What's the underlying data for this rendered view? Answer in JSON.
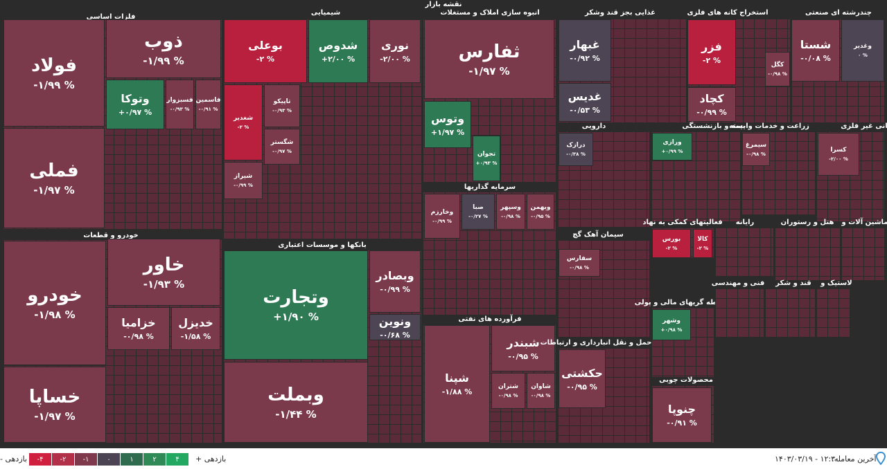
{
  "header": {
    "title": "نقشه بازار"
  },
  "sectors": [
    {
      "title": "فلزات اساسی",
      "tiles": [
        {
          "name": "فولاد",
          "change": "-۱/۹۹ %",
          "color": "#7b3a4c"
        },
        {
          "name": "فملی",
          "change": "-۱/۹۷ %",
          "color": "#7b3a4c"
        },
        {
          "name": "ذوب",
          "change": "-۱/۹۹ %",
          "color": "#7b3a4c"
        },
        {
          "name": "وتوکا",
          "change": "+۰/۹۷ %",
          "color": "#2e7a55"
        },
        {
          "name": "فسبزوار",
          "change": "-۰/۹۳ %",
          "color": "#7b3a4c"
        },
        {
          "name": "فاسمین",
          "change": "-۰/۹۱ %",
          "color": "#7b3a4c"
        }
      ]
    },
    {
      "title": "خودرو و قطعات",
      "tiles": [
        {
          "name": "خودرو",
          "change": "-۱/۹۸ %",
          "color": "#7b3a4c"
        },
        {
          "name": "خساپا",
          "change": "-۱/۹۷ %",
          "color": "#7b3a4c"
        },
        {
          "name": "خاور",
          "change": "-۱/۹۳ %",
          "color": "#7b3a4c"
        },
        {
          "name": "خزامیا",
          "change": "-۰/۹۸ %",
          "color": "#7b3a4c"
        },
        {
          "name": "خدیزل",
          "change": "-۱/۵۸ %",
          "color": "#7b3a4c"
        }
      ]
    },
    {
      "title": "شیمیایی",
      "tiles": [
        {
          "name": "بوعلی",
          "change": "-۲ %",
          "color": "#b8203d"
        },
        {
          "name": "شدوص",
          "change": "+۲/۰۰ %",
          "color": "#2e7a55"
        },
        {
          "name": "نوری",
          "change": "-۲/۰۰ %",
          "color": "#7b3a4c"
        },
        {
          "name": "شغدیر",
          "change": "-۲ %",
          "color": "#b8203d"
        },
        {
          "name": "تاپیکو",
          "change": "-۰/۹۳ %",
          "color": "#7b3a4c"
        },
        {
          "name": "شگستر",
          "change": "-۰/۹۷ %",
          "color": "#7b3a4c"
        },
        {
          "name": "شیراز",
          "change": "-۰/۹۹ %",
          "color": "#7b3a4c"
        }
      ]
    },
    {
      "title": "بانکها و موسسات اعتباری",
      "tiles": [
        {
          "name": "وتجارت",
          "change": "+۱/۹۰ %",
          "color": "#2e7a55"
        },
        {
          "name": "وبملت",
          "change": "-۱/۴۴ %",
          "color": "#7b3a4c"
        },
        {
          "name": "وبصادر",
          "change": "-۰/۹۹ %",
          "color": "#7b3a4c"
        },
        {
          "name": "ونوین",
          "change": "-۰/۶۸ %",
          "color": "#4d4553"
        }
      ]
    },
    {
      "title": "انبوه سازی املاک و مستغلات",
      "tiles": [
        {
          "name": "ثفارس",
          "change": "-۱/۹۷ %",
          "color": "#7b3a4c"
        },
        {
          "name": "وتوس",
          "change": "+۱/۹۷ %",
          "color": "#2e7a55"
        },
        {
          "name": "تجوان",
          "change": "+۰/۹۳ %",
          "color": "#2e7a55"
        }
      ]
    },
    {
      "title": "سرمایه گذاریها",
      "tiles": [
        {
          "name": "وخارزم",
          "change": "-۰/۹۹ %",
          "color": "#7b3a4c"
        },
        {
          "name": "صبا",
          "change": "-۰/۲۷ %",
          "color": "#4d4553"
        },
        {
          "name": "وسپهر",
          "change": "-۰/۹۸ %",
          "color": "#7b3a4c"
        },
        {
          "name": "وبهمن",
          "change": "-۰/۹۵ %",
          "color": "#7b3a4c"
        }
      ]
    },
    {
      "title": "فرآورده های نفتی",
      "tiles": [
        {
          "name": "شپنا",
          "change": "-۱/۸۸ %",
          "color": "#7b3a4c"
        },
        {
          "name": "شبندر",
          "change": "-۰/۹۵ %",
          "color": "#7b3a4c"
        },
        {
          "name": "شتران",
          "change": "-۰/۹۸ %",
          "color": "#7b3a4c"
        },
        {
          "name": "شاوان",
          "change": "-۰/۹۸ %",
          "color": "#7b3a4c"
        }
      ]
    },
    {
      "title": "غذایی بجز قند وشکر",
      "tiles": [
        {
          "name": "غبهار",
          "change": "-۰/۹۲ %",
          "color": "#4d4553"
        },
        {
          "name": "غدیس",
          "change": "-۰/۵۳ %",
          "color": "#4d4553"
        }
      ]
    },
    {
      "title": "استخراج کانه های فلزی",
      "tiles": [
        {
          "name": "فزر",
          "change": "-۲ %",
          "color": "#b8203d"
        },
        {
          "name": "کچاد",
          "change": "-۰/۹۹ %",
          "color": "#7b3a4c"
        },
        {
          "name": "کگل",
          "change": "-۰/۹۸ %",
          "color": "#7b3a4c"
        }
      ]
    },
    {
      "title": "چندرشته ای صنعتی",
      "tiles": [
        {
          "name": "شستا",
          "change": "-۰/۰۸ %",
          "color": "#7b3a4c"
        },
        {
          "name": "وغدیر",
          "change": "۰ %",
          "color": "#4d4553"
        }
      ]
    },
    {
      "title": "دارویی",
      "tiles": [
        {
          "name": "درازک",
          "change": "-۰/۳۸ %",
          "color": "#4d4553"
        }
      ]
    },
    {
      "title": "بیمه و بازنشستگی",
      "tiles": [
        {
          "name": "ورازی",
          "change": "+۰/۹۹ %",
          "color": "#2e7a55"
        }
      ]
    },
    {
      "title": "زراعت و خدمات وابسته",
      "tiles": [
        {
          "name": "سیمرغ",
          "change": "-۰/۹۸ %",
          "color": "#7b3a4c"
        }
      ]
    },
    {
      "title": "کانی غیر فلزی",
      "tiles": [
        {
          "name": "کسرا",
          "change": "-۲/۰۰ %",
          "color": "#7b3a4c"
        }
      ]
    },
    {
      "title": "سیمان آهک گچ",
      "tiles": [
        {
          "name": "سفارس",
          "change": "-۰/۹۸ %",
          "color": "#7b3a4c"
        }
      ]
    },
    {
      "title": "فعالیتهای کمکی به نهاد",
      "tiles": [
        {
          "name": "بورس",
          "change": "-۲ %",
          "color": "#b8203d"
        },
        {
          "name": "کالا",
          "change": "-۲ %",
          "color": "#b8203d"
        }
      ]
    },
    {
      "title": "واسطه گریهای مالی و پولی",
      "tiles": [
        {
          "name": "وشهر",
          "change": "+۰/۹۸ %",
          "color": "#2e7a55"
        }
      ]
    },
    {
      "title": "حمل و نقل انبارداری و ارتباطات",
      "tiles": [
        {
          "name": "حکشتی",
          "change": "-۰/۹۵ %",
          "color": "#7b3a4c"
        }
      ]
    },
    {
      "title": "محصولات چوبی",
      "tiles": [
        {
          "name": "چنوپا",
          "change": "-۰/۹۱ %",
          "color": "#7b3a4c"
        }
      ]
    },
    {
      "title": "رایانه",
      "tiles": []
    },
    {
      "title": "هتل و رستوران",
      "tiles": []
    },
    {
      "title": "ماشین آلات و",
      "tiles": []
    },
    {
      "title": "فنی و مهندسی",
      "tiles": []
    },
    {
      "title": "قند و شکر",
      "tiles": []
    },
    {
      "title": "لاستیک و",
      "tiles": []
    }
  ],
  "footer": {
    "last_trade_label": "آخرین معامله:",
    "last_trade": "۱۴۰۳/۰۳/۱۹ - ۱۲:۳۰",
    "legend_plus": "بازدهی +",
    "legend_minus": "بازدهی -",
    "legend": [
      {
        "label": "-۴",
        "color": "#d0203f"
      },
      {
        "label": "-۲",
        "color": "#b33148"
      },
      {
        "label": "-۱",
        "color": "#7e3a4c"
      },
      {
        "label": "۰",
        "color": "#4c4452"
      },
      {
        "label": "۱",
        "color": "#2f6b4f"
      },
      {
        "label": "۲",
        "color": "#2f8a57"
      },
      {
        "label": "۴",
        "color": "#22a860"
      }
    ]
  }
}
